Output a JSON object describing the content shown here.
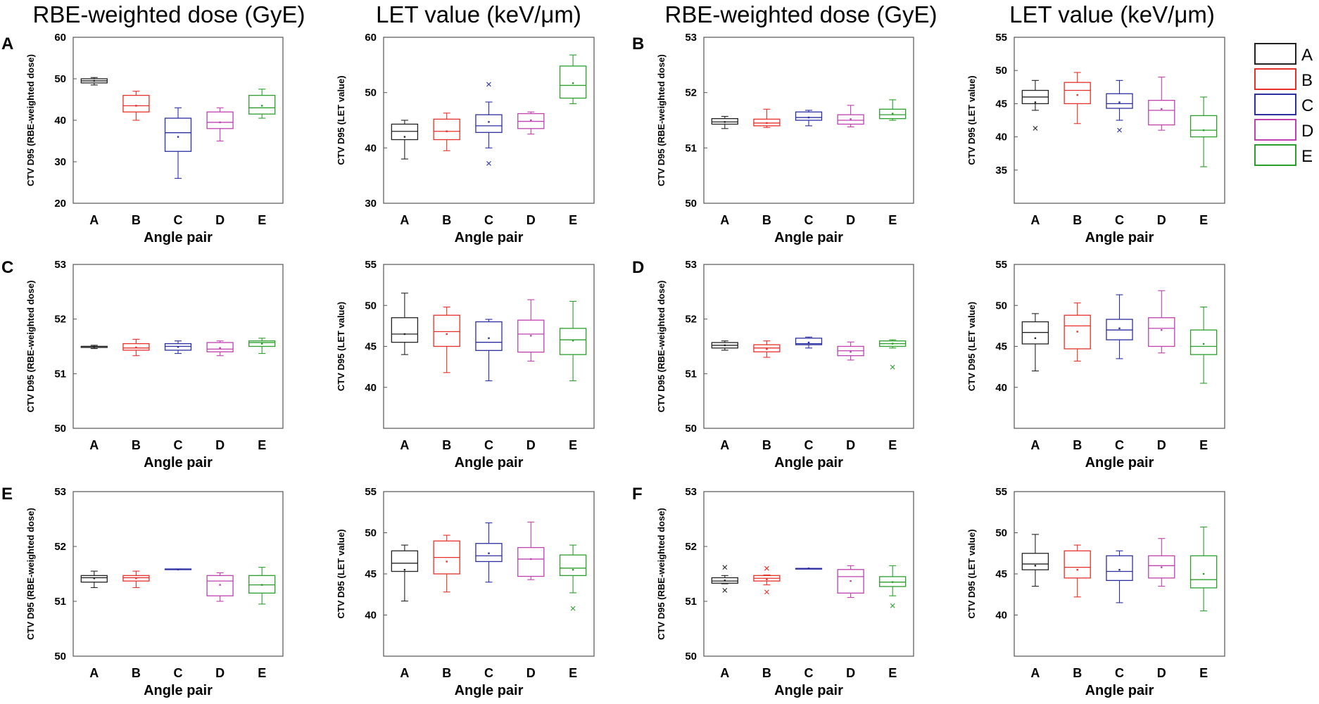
{
  "figure": {
    "column_titles": [
      "RBE-weighted dose (GyE)",
      "LET value (keV/μm)",
      "RBE-weighted dose (GyE)",
      "LET value (keV/μm)"
    ]
  },
  "colors": {
    "A": "#222222",
    "B": "#e8302a",
    "C": "#2c2fa0",
    "D": "#c040b0",
    "E": "#2aa02a"
  },
  "legend": {
    "entries": [
      {
        "label": "A",
        "color": "#222222"
      },
      {
        "label": "B",
        "color": "#e8302a"
      },
      {
        "label": "C",
        "color": "#2c2fa0"
      },
      {
        "label": "D",
        "color": "#c040b0"
      },
      {
        "label": "E",
        "color": "#2aa02a"
      }
    ]
  },
  "chart_data": [
    {
      "type": "box",
      "panel": "A",
      "metric": "RBE-weighted dose",
      "ylabel": "CTV D95 (RBE-weighted dose)",
      "xlabel": "Angle pair",
      "ylim": [
        20,
        60
      ],
      "yticks": [
        20,
        30,
        40,
        50,
        60
      ],
      "categories": [
        "A",
        "B",
        "C",
        "D",
        "E"
      ],
      "boxes": [
        {
          "min": 48.5,
          "q1": 49.0,
          "median": 49.5,
          "q3": 50.0,
          "max": 50.3,
          "mean": 49.5
        },
        {
          "min": 40.0,
          "q1": 42.0,
          "median": 43.5,
          "q3": 46.0,
          "max": 47.0,
          "mean": 43.5
        },
        {
          "min": 26.0,
          "q1": 32.5,
          "median": 37.0,
          "q3": 40.5,
          "max": 43.0,
          "mean": 36.0
        },
        {
          "min": 35.0,
          "q1": 38.0,
          "median": 39.5,
          "q3": 42.0,
          "max": 43.0,
          "mean": 39.5
        },
        {
          "min": 40.5,
          "q1": 41.5,
          "median": 43.0,
          "q3": 46.0,
          "max": 47.5,
          "mean": 43.5
        }
      ]
    },
    {
      "type": "box",
      "panel": "A",
      "metric": "LET value",
      "ylabel": "CTV D95 (LET value)",
      "xlabel": "Angle pair",
      "ylim": [
        30,
        60
      ],
      "yticks": [
        30,
        40,
        50,
        60
      ],
      "categories": [
        "A",
        "B",
        "C",
        "D",
        "E"
      ],
      "boxes": [
        {
          "min": 38.0,
          "q1": 41.5,
          "median": 43.0,
          "q3": 44.3,
          "max": 45.0,
          "mean": 42.0
        },
        {
          "min": 39.5,
          "q1": 41.5,
          "median": 43.0,
          "q3": 45.2,
          "max": 46.3,
          "mean": 43.0
        },
        {
          "min": 40.0,
          "q1": 42.8,
          "median": 44.0,
          "q3": 46.0,
          "max": 48.3,
          "mean": 44.7,
          "outliers": [
            51.5,
            37.2
          ]
        },
        {
          "min": 42.5,
          "q1": 43.5,
          "median": 44.8,
          "q3": 46.2,
          "max": 46.5,
          "mean": 45.0
        },
        {
          "min": 48.0,
          "q1": 49.0,
          "median": 51.3,
          "q3": 54.8,
          "max": 56.8,
          "mean": 51.7
        }
      ]
    },
    {
      "type": "box",
      "panel": "B",
      "metric": "RBE-weighted dose",
      "ylabel": "CTV D95 (RBE-weighted dose)",
      "xlabel": "Angle pair",
      "ylim": [
        50,
        53
      ],
      "yticks": [
        50,
        51,
        52,
        53
      ],
      "categories": [
        "A",
        "B",
        "C",
        "D",
        "E"
      ],
      "boxes": [
        {
          "min": 51.35,
          "q1": 51.43,
          "median": 51.47,
          "q3": 51.53,
          "max": 51.57,
          "mean": 51.47
        },
        {
          "min": 51.37,
          "q1": 51.4,
          "median": 51.45,
          "q3": 51.52,
          "max": 51.7,
          "mean": 51.45
        },
        {
          "min": 51.4,
          "q1": 51.5,
          "median": 51.55,
          "q3": 51.65,
          "max": 51.68,
          "mean": 51.55
        },
        {
          "min": 51.38,
          "q1": 51.43,
          "median": 51.5,
          "q3": 51.6,
          "max": 51.77,
          "mean": 51.52
        },
        {
          "min": 51.5,
          "q1": 51.53,
          "median": 51.6,
          "q3": 51.7,
          "max": 51.87,
          "mean": 51.62
        }
      ]
    },
    {
      "type": "box",
      "panel": "B",
      "metric": "LET value",
      "ylabel": "CTV D95 (LET value)",
      "xlabel": "Angle pair",
      "ylim": [
        30,
        55
      ],
      "yticks": [
        35,
        40,
        45,
        50,
        55
      ],
      "categories": [
        "A",
        "B",
        "C",
        "D",
        "E"
      ],
      "boxes": [
        {
          "min": 44.0,
          "q1": 45.0,
          "median": 46.0,
          "q3": 47.0,
          "max": 48.5,
          "mean": 45.2,
          "outliers": [
            41.3
          ]
        },
        {
          "min": 42.0,
          "q1": 45.0,
          "median": 47.0,
          "q3": 48.2,
          "max": 49.7,
          "mean": 46.3
        },
        {
          "min": 42.5,
          "q1": 44.3,
          "median": 45.0,
          "q3": 46.5,
          "max": 48.5,
          "mean": 45.2,
          "outliers": [
            41.0
          ]
        },
        {
          "min": 41.0,
          "q1": 41.8,
          "median": 44.0,
          "q3": 45.5,
          "max": 49.0,
          "mean": 44.2
        },
        {
          "min": 35.5,
          "q1": 40.0,
          "median": 41.0,
          "q3": 43.2,
          "max": 46.0,
          "mean": 41.0
        }
      ]
    },
    {
      "type": "box",
      "panel": "C",
      "metric": "RBE-weighted dose",
      "ylabel": "CTV D95 (RBE-weighted dose)",
      "xlabel": "Angle pair",
      "ylim": [
        50,
        53
      ],
      "yticks": [
        50,
        51,
        52,
        53
      ],
      "categories": [
        "A",
        "B",
        "C",
        "D",
        "E"
      ],
      "boxes": [
        {
          "min": 51.46,
          "q1": 51.48,
          "median": 51.5,
          "q3": 51.5,
          "max": 51.52,
          "mean": 51.49
        },
        {
          "min": 51.33,
          "q1": 51.43,
          "median": 51.47,
          "q3": 51.55,
          "max": 51.63,
          "mean": 51.48
        },
        {
          "min": 51.37,
          "q1": 51.43,
          "median": 51.5,
          "q3": 51.55,
          "max": 51.6,
          "mean": 51.49
        },
        {
          "min": 51.33,
          "q1": 51.4,
          "median": 51.45,
          "q3": 51.57,
          "max": 51.6,
          "mean": 51.47
        },
        {
          "min": 51.37,
          "q1": 51.5,
          "median": 51.57,
          "q3": 51.6,
          "max": 51.65,
          "mean": 51.55
        }
      ]
    },
    {
      "type": "box",
      "panel": "C",
      "metric": "LET value",
      "ylabel": "CTV D95 (LET value)",
      "xlabel": "Angle pair",
      "ylim": [
        35,
        55
      ],
      "yticks": [
        40,
        45,
        50,
        55
      ],
      "categories": [
        "A",
        "B",
        "C",
        "D",
        "E"
      ],
      "boxes": [
        {
          "min": 44.0,
          "q1": 45.5,
          "median": 46.5,
          "q3": 48.5,
          "max": 51.5,
          "mean": 46.5
        },
        {
          "min": 41.8,
          "q1": 45.0,
          "median": 46.8,
          "q3": 48.8,
          "max": 49.8,
          "mean": 46.5
        },
        {
          "min": 40.8,
          "q1": 44.5,
          "median": 45.5,
          "q3": 48.0,
          "max": 48.3,
          "mean": 46.0
        },
        {
          "min": 43.2,
          "q1": 44.3,
          "median": 46.5,
          "q3": 48.2,
          "max": 50.7,
          "mean": 46.3
        },
        {
          "min": 40.8,
          "q1": 44.0,
          "median": 45.8,
          "q3": 47.2,
          "max": 50.5,
          "mean": 45.7
        }
      ]
    },
    {
      "type": "box",
      "panel": "D",
      "metric": "RBE-weighted dose",
      "ylabel": "CTV D95 (RBE-weighted dose)",
      "xlabel": "Angle pair",
      "ylim": [
        50,
        53
      ],
      "yticks": [
        50,
        51,
        52,
        53
      ],
      "categories": [
        "A",
        "B",
        "C",
        "D",
        "E"
      ],
      "boxes": [
        {
          "min": 51.43,
          "q1": 51.47,
          "median": 51.52,
          "q3": 51.57,
          "max": 51.6,
          "mean": 51.52
        },
        {
          "min": 51.3,
          "q1": 51.4,
          "median": 51.47,
          "q3": 51.53,
          "max": 51.6,
          "mean": 51.45
        },
        {
          "min": 51.47,
          "q1": 51.53,
          "median": 51.55,
          "q3": 51.65,
          "max": 51.67,
          "mean": 51.57
        },
        {
          "min": 51.25,
          "q1": 51.33,
          "median": 51.42,
          "q3": 51.5,
          "max": 51.58,
          "mean": 51.4
        },
        {
          "min": 51.47,
          "q1": 51.5,
          "median": 51.55,
          "q3": 51.6,
          "max": 51.62,
          "mean": 51.55,
          "outliers": [
            51.12
          ]
        }
      ]
    },
    {
      "type": "box",
      "panel": "D",
      "metric": "LET value",
      "ylabel": "CTV D95 (LET value)",
      "xlabel": "Angle pair",
      "ylim": [
        35,
        55
      ],
      "yticks": [
        40,
        45,
        50,
        55
      ],
      "categories": [
        "A",
        "B",
        "C",
        "D",
        "E"
      ],
      "boxes": [
        {
          "min": 42.0,
          "q1": 45.3,
          "median": 46.7,
          "q3": 48.0,
          "max": 49.0,
          "mean": 46.0
        },
        {
          "min": 43.2,
          "q1": 44.7,
          "median": 47.5,
          "q3": 48.8,
          "max": 50.3,
          "mean": 46.8
        },
        {
          "min": 43.5,
          "q1": 45.8,
          "median": 47.0,
          "q3": 48.3,
          "max": 51.3,
          "mean": 47.2
        },
        {
          "min": 44.2,
          "q1": 45.0,
          "median": 47.2,
          "q3": 48.5,
          "max": 51.8,
          "mean": 47.0
        },
        {
          "min": 40.5,
          "q1": 44.0,
          "median": 45.0,
          "q3": 47.0,
          "max": 49.8,
          "mean": 45.3
        }
      ]
    },
    {
      "type": "box",
      "panel": "E",
      "metric": "RBE-weighted dose",
      "ylabel": "CTV D95 (RBE-weighted dose)",
      "xlabel": "Angle pair",
      "ylim": [
        50,
        53
      ],
      "yticks": [
        50,
        51,
        52,
        53
      ],
      "categories": [
        "A",
        "B",
        "C",
        "D",
        "E"
      ],
      "boxes": [
        {
          "min": 51.25,
          "q1": 51.35,
          "median": 51.43,
          "q3": 51.47,
          "max": 51.55,
          "mean": 51.42
        },
        {
          "min": 51.25,
          "q1": 51.37,
          "median": 51.43,
          "q3": 51.47,
          "max": 51.55,
          "mean": 51.42
        },
        {
          "min": 51.58,
          "q1": 51.58,
          "median": 51.58,
          "q3": 51.59,
          "max": 51.59,
          "mean": 51.58
        },
        {
          "min": 51.0,
          "q1": 51.1,
          "median": 51.37,
          "q3": 51.47,
          "max": 51.52,
          "mean": 51.3
        },
        {
          "min": 50.95,
          "q1": 51.15,
          "median": 51.3,
          "q3": 51.47,
          "max": 51.62,
          "mean": 51.3
        }
      ]
    },
    {
      "type": "box",
      "panel": "E",
      "metric": "LET value",
      "ylabel": "CTV D95 (LET value)",
      "xlabel": "Angle pair",
      "ylim": [
        35,
        55
      ],
      "yticks": [
        40,
        45,
        50,
        55
      ],
      "categories": [
        "A",
        "B",
        "C",
        "D",
        "E"
      ],
      "boxes": [
        {
          "min": 41.7,
          "q1": 45.3,
          "median": 46.3,
          "q3": 47.8,
          "max": 48.5,
          "mean": 45.5
        },
        {
          "min": 42.8,
          "q1": 45.0,
          "median": 47.0,
          "q3": 49.0,
          "max": 49.7,
          "mean": 46.5
        },
        {
          "min": 44.0,
          "q1": 46.5,
          "median": 47.2,
          "q3": 48.7,
          "max": 51.2,
          "mean": 47.5
        },
        {
          "min": 44.3,
          "q1": 44.7,
          "median": 46.8,
          "q3": 48.2,
          "max": 51.3,
          "mean": 46.8
        },
        {
          "min": 42.7,
          "q1": 44.8,
          "median": 45.7,
          "q3": 47.3,
          "max": 48.5,
          "mean": 45.5,
          "outliers": [
            40.8
          ]
        }
      ]
    },
    {
      "type": "box",
      "panel": "F",
      "metric": "RBE-weighted dose",
      "ylabel": "CTV D95 (RBE-weighted dose)",
      "xlabel": "Angle pair",
      "ylim": [
        50,
        53
      ],
      "yticks": [
        50,
        51,
        52,
        53
      ],
      "categories": [
        "A",
        "B",
        "C",
        "D",
        "E"
      ],
      "boxes": [
        {
          "min": 51.32,
          "q1": 51.33,
          "median": 51.37,
          "q3": 51.43,
          "max": 51.47,
          "mean": 51.38,
          "outliers": [
            51.62,
            51.2
          ]
        },
        {
          "min": 51.3,
          "q1": 51.37,
          "median": 51.42,
          "q3": 51.47,
          "max": 51.48,
          "mean": 51.4,
          "outliers": [
            51.6,
            51.17
          ]
        },
        {
          "min": 51.59,
          "q1": 51.59,
          "median": 51.6,
          "q3": 51.6,
          "max": 51.6,
          "mean": 51.6
        },
        {
          "min": 51.07,
          "q1": 51.15,
          "median": 51.45,
          "q3": 51.58,
          "max": 51.65,
          "mean": 51.37
        },
        {
          "min": 51.1,
          "q1": 51.27,
          "median": 51.35,
          "q3": 51.45,
          "max": 51.65,
          "mean": 51.35,
          "outliers": [
            50.92
          ]
        }
      ]
    },
    {
      "type": "box",
      "panel": "F",
      "metric": "LET value",
      "ylabel": "CTV D95 (LET value)",
      "xlabel": "Angle pair",
      "ylim": [
        35,
        55
      ],
      "yticks": [
        40,
        45,
        50,
        55
      ],
      "categories": [
        "A",
        "B",
        "C",
        "D",
        "E"
      ],
      "boxes": [
        {
          "min": 43.5,
          "q1": 45.5,
          "median": 46.2,
          "q3": 47.5,
          "max": 49.8,
          "mean": 46.0
        },
        {
          "min": 42.2,
          "q1": 44.5,
          "median": 45.8,
          "q3": 47.8,
          "max": 48.5,
          "mean": 45.5
        },
        {
          "min": 41.5,
          "q1": 44.2,
          "median": 45.3,
          "q3": 47.2,
          "max": 47.8,
          "mean": 45.5
        },
        {
          "min": 43.5,
          "q1": 44.5,
          "median": 46.0,
          "q3": 47.2,
          "max": 49.3,
          "mean": 45.8
        },
        {
          "min": 40.5,
          "q1": 43.3,
          "median": 44.3,
          "q3": 47.2,
          "max": 50.7,
          "mean": 45.0
        }
      ]
    }
  ]
}
